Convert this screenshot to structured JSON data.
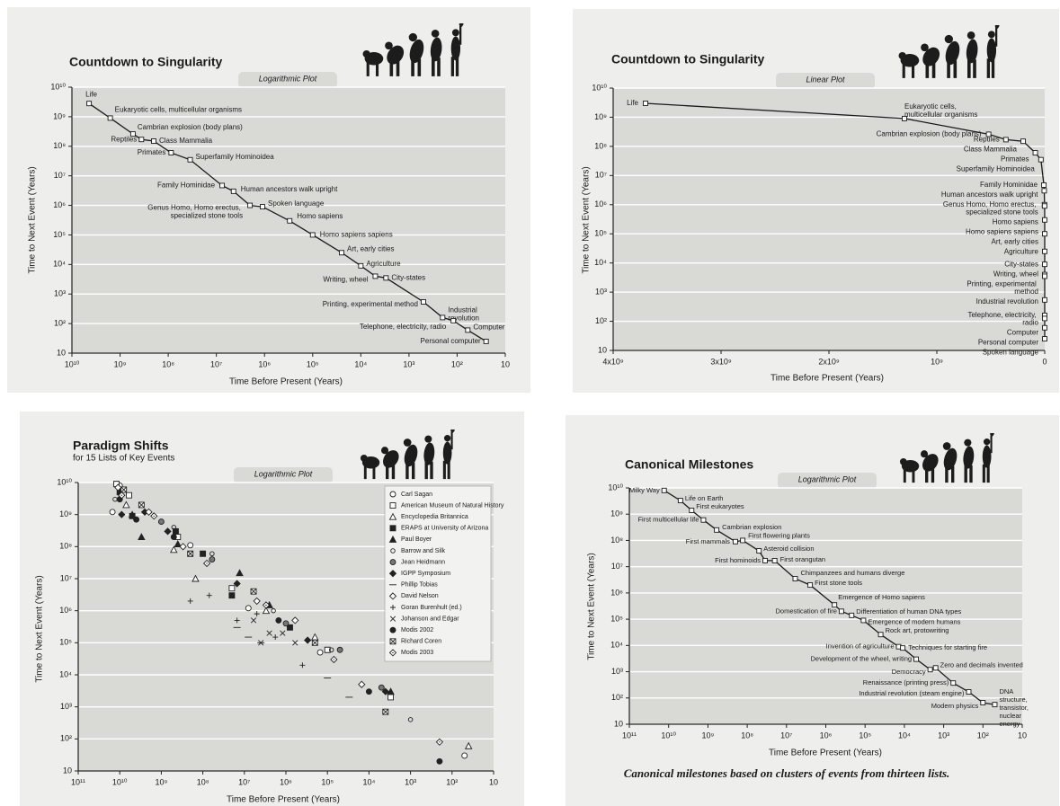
{
  "chart_data": [
    {
      "type": "line",
      "title": "Countdown to Singularity",
      "plot_label": "Logarithmic Plot",
      "x_label": "Time Before Present (Years)",
      "y_label": "Time to Next Event (Years)",
      "x_scale": "log",
      "y_scale": "log",
      "xlim": [
        10000000000.0,
        10
      ],
      "ylim": [
        10,
        10000000000.0
      ],
      "xticks": [
        {
          "value": 10000000000.0,
          "label": "10¹⁰"
        },
        {
          "value": 1000000000.0,
          "label": "10⁹"
        },
        {
          "value": 100000000.0,
          "label": "10⁸"
        },
        {
          "value": 10000000.0,
          "label": "10⁷"
        },
        {
          "value": 1000000.0,
          "label": "10⁶"
        },
        {
          "value": 100000.0,
          "label": "10⁵"
        },
        {
          "value": 10000.0,
          "label": "10⁴"
        },
        {
          "value": 1000.0,
          "label": "10³"
        },
        {
          "value": 100,
          "label": "10²"
        },
        10
      ],
      "yticks": [
        10,
        {
          "value": 100,
          "label": "10²"
        },
        {
          "value": 1000.0,
          "label": "10³"
        },
        {
          "value": 10000.0,
          "label": "10⁴"
        },
        {
          "value": 100000.0,
          "label": "10⁵"
        },
        {
          "value": 1000000.0,
          "label": "10⁶"
        },
        {
          "value": 10000000.0,
          "label": "10⁷"
        },
        {
          "value": 100000000.0,
          "label": "10⁸"
        },
        {
          "value": 1000000000.0,
          "label": "10⁹"
        },
        {
          "value": 10000000000.0,
          "label": "10¹⁰"
        }
      ],
      "grid": true,
      "color": "#1a1a1a",
      "x": [
        4400000000.0,
        1600000000.0,
        540000000.0,
        360000000.0,
        200000000.0,
        87000000.0,
        35000000.0,
        7600000.0,
        4400000.0,
        2000000.0,
        1100000.0,
        300000.0,
        100000.0,
        25000.0,
        10000.0,
        5000.0,
        3000.0,
        500,
        200,
        120,
        60,
        25
      ],
      "values": [
        2800000000.0,
        900000000.0,
        260000000.0,
        170000000.0,
        150000000.0,
        60000000.0,
        35000000.0,
        4700000.0,
        3000000.0,
        1000000.0,
        900000.0,
        300000.0,
        100000.0,
        25000.0,
        9000.0,
        4000.0,
        3500.0,
        540,
        160,
        125,
        60,
        25
      ],
      "labels": [
        "Life",
        "Eukaryotic cells, multicellular organisms",
        "Cambrian explosion (body plans)",
        "Reptiles",
        "Class Mammalia",
        "Primates",
        "Superfamily Hominoidea",
        "Family Hominidae",
        "Human ancestors walk upright",
        "Genus Homo, Homo erectus, specialized stone tools",
        "Spoken language",
        "Homo sapiens",
        "Homo sapiens sapiens",
        "Art, early cities",
        "Agriculture",
        "Writing, wheel",
        "City-states",
        "Printing, experimental method",
        "Industrial revolution",
        "Telephone, electricity, radio",
        "Computer",
        "Personal computer"
      ]
    },
    {
      "type": "line",
      "title": "Countdown to Singularity",
      "plot_label": "Linear Plot",
      "x_label": "Time Before Present (Years)",
      "y_label": "Time to Next Event (Years)",
      "x_scale": "linear",
      "y_scale": "log",
      "xlim": [
        4000000000.0,
        0
      ],
      "ylim": [
        10,
        10000000000.0
      ],
      "xticks": [
        {
          "value": 4000000000.0,
          "label": "4x10⁹"
        },
        {
          "value": 3000000000.0,
          "label": "3x10⁹"
        },
        {
          "value": 2000000000.0,
          "label": "2x10⁹"
        },
        {
          "value": 1000000000.0,
          "label": "10⁹"
        },
        0
      ],
      "yticks": [
        10,
        {
          "value": 100,
          "label": "10²"
        },
        {
          "value": 1000.0,
          "label": "10³"
        },
        {
          "value": 10000.0,
          "label": "10⁴"
        },
        {
          "value": 100000.0,
          "label": "10⁵"
        },
        {
          "value": 1000000.0,
          "label": "10⁶"
        },
        {
          "value": 10000000.0,
          "label": "10⁷"
        },
        {
          "value": 100000000.0,
          "label": "10⁸"
        },
        {
          "value": 1000000000.0,
          "label": "10⁹"
        },
        {
          "value": 10000000000.0,
          "label": "10¹⁰"
        }
      ],
      "grid": true,
      "color": "#1a1a1a",
      "x": [
        3700000000.0,
        1300000000.0,
        520000000.0,
        360000000.0,
        200000000.0,
        87000000.0,
        35000000.0,
        7600000.0,
        4400000.0,
        2000000.0,
        1100000.0,
        300000.0,
        100000.0,
        25000.0,
        10000.0,
        5000.0,
        3000.0,
        500,
        200,
        120,
        60,
        25
      ],
      "values": [
        3000000000.0,
        900000000.0,
        260000000.0,
        170000000.0,
        150000000.0,
        60000000.0,
        35000000.0,
        4700000.0,
        3000000.0,
        1000000.0,
        900000.0,
        300000.0,
        100000.0,
        25000.0,
        9000.0,
        4000.0,
        3500.0,
        540,
        160,
        125,
        60,
        25
      ],
      "labels": [
        "Life",
        "Eukaryotic cells, multicellular organisms",
        "Cambrian explosion (body plans)",
        "Reptiles",
        "Class Mammalia",
        "Primates",
        "Superfamily Hominoidea",
        "Family Hominidae",
        "Human ancestors walk upright",
        "Genus Homo, Homo erectus, specialized stone tools",
        "Homo sapiens",
        "Homo sapiens sapiens",
        "Art, early cities",
        "Agriculture",
        "City-states",
        "Writing, wheel",
        "Printing, experimental method",
        "Industrial revolution",
        "Telephone, electricity, radio",
        "Computer",
        "Personal computer",
        "Spoken language"
      ]
    },
    {
      "type": "scatter",
      "title": "Paradigm Shifts",
      "subtitle": "for 15 Lists of Key Events",
      "plot_label": "Logarithmic Plot",
      "x_label": "Time Before Present (Years)",
      "y_label": "Time to Next Event (Years)",
      "x_scale": "log",
      "y_scale": "log",
      "xlim": [
        100000000000.0,
        10
      ],
      "ylim": [
        10,
        10000000000.0
      ],
      "xticks": [
        {
          "value": 100000000000.0,
          "label": "10¹¹"
        },
        {
          "value": 10000000000.0,
          "label": "10¹⁰"
        },
        {
          "value": 1000000000.0,
          "label": "10⁹"
        },
        {
          "value": 100000000.0,
          "label": "10⁸"
        },
        {
          "value": 10000000.0,
          "label": "10⁷"
        },
        {
          "value": 1000000.0,
          "label": "10⁶"
        },
        {
          "value": 100000.0,
          "label": "10⁵"
        },
        {
          "value": 10000.0,
          "label": "10⁴"
        },
        {
          "value": 1000.0,
          "label": "10³"
        },
        {
          "value": 100,
          "label": "10²"
        },
        10
      ],
      "yticks": [
        10,
        {
          "value": 100,
          "label": "10²"
        },
        {
          "value": 1000.0,
          "label": "10³"
        },
        {
          "value": 10000.0,
          "label": "10⁴"
        },
        {
          "value": 100000.0,
          "label": "10⁵"
        },
        {
          "value": 1000000.0,
          "label": "10⁶"
        },
        {
          "value": 10000000.0,
          "label": "10⁷"
        },
        {
          "value": 100000000.0,
          "label": "10⁸"
        },
        {
          "value": 1000000000.0,
          "label": "10⁹"
        },
        {
          "value": 10000000000.0,
          "label": "10¹⁰"
        }
      ],
      "grid": true,
      "legend": "upper right",
      "series": [
        {
          "name": "Carl Sagan",
          "marker": "circle-open",
          "color": "#222222",
          "x": [
            15000000000.0,
            10000000000.0,
            200000000.0,
            8000000.0,
            150000.0,
            50
          ],
          "values": [
            1200000000.0,
            8000000000.0,
            110000000.0,
            1200000.0,
            50000.0,
            30
          ]
        },
        {
          "name": "American Museum of Natural History",
          "marker": "square-open",
          "color": "#222222",
          "x": [
            12000000000.0,
            6000000000.0,
            400000000.0,
            20000000.0,
            100000.0,
            3000
          ],
          "values": [
            9000000000.0,
            4000000000.0,
            200000000.0,
            5000000.0,
            60000.0,
            2000
          ]
        },
        {
          "name": "Encyclopedia Britannica",
          "marker": "triangle-open",
          "color": "#222222",
          "x": [
            7000000000.0,
            500000000.0,
            150000000.0,
            3000000.0,
            200000.0,
            40
          ],
          "values": [
            2000000000.0,
            80000000.0,
            10000000.0,
            1000000.0,
            150000.0,
            60
          ]
        },
        {
          "name": "ERAPS at University of Arizona",
          "marker": "square",
          "color": "#222222",
          "x": [
            10000000000.0,
            5000000000.0,
            450000000.0,
            100000000.0,
            20000000.0,
            800000.0
          ],
          "values": [
            5000000000.0,
            900000000.0,
            300000000.0,
            60000000.0,
            3000000.0,
            300000.0
          ]
        },
        {
          "name": "Paul Boyer",
          "marker": "triangle",
          "color": "#222222",
          "x": [
            5000000000.0,
            3000000000.0,
            400000000.0,
            13000000.0,
            2500000.0,
            3000
          ],
          "values": [
            1000000000.0,
            200000000.0,
            120000000.0,
            15000000.0,
            1500000.0,
            3000
          ]
        },
        {
          "name": "Barrow and Silk",
          "marker": "circle-small-open",
          "color": "#222222",
          "x": [
            13000000000.0,
            500000000.0,
            60000000.0,
            2000000.0,
            80000.0,
            1000
          ],
          "values": [
            3000000000.0,
            400000000.0,
            60000000.0,
            1000000.0,
            60000.0,
            400
          ]
        },
        {
          "name": "Jean Heidmann",
          "marker": "circle-half",
          "color": "#222222",
          "x": [
            8000000000.0,
            1000000000.0,
            60000000.0,
            1000000.0,
            50000.0,
            5000
          ],
          "values": [
            6000000000.0,
            600000000.0,
            40000000.0,
            400000.0,
            60000.0,
            4000
          ]
        },
        {
          "name": "IGPP Symposium",
          "marker": "diamond",
          "color": "#222222",
          "x": [
            9000000000.0,
            2500000000.0,
            700000000.0,
            15000000.0,
            300000.0,
            4000
          ],
          "values": [
            1000000000.0,
            1200000000.0,
            300000000.0,
            7000000.0,
            120000.0,
            3000
          ]
        },
        {
          "name": "Phillip Tobias",
          "marker": "dash",
          "color": "#222222",
          "x": [
            15000000.0,
            8000000.0,
            4000000.0,
            100000.0,
            30000.0
          ],
          "values": [
            300000.0,
            150000.0,
            100000.0,
            8000.0,
            2000
          ]
        },
        {
          "name": "David Nelson",
          "marker": "diamond-open",
          "color": "#222222",
          "x": [
            11000000000.0,
            2000000000.0,
            300000000.0,
            5000000.0,
            600000.0,
            15000.0
          ],
          "values": [
            7000000000.0,
            1200000000.0,
            100000000.0,
            2000000.0,
            500000.0,
            5000
          ]
        },
        {
          "name": "Goran Burenhult (ed.)",
          "marker": "plus",
          "color": "#222222",
          "x": [
            200000000.0,
            70000000.0,
            15000000.0,
            5000000.0,
            1800000.0,
            400000.0
          ],
          "values": [
            2000000.0,
            3000000.0,
            500000.0,
            800000.0,
            150000.0,
            20000.0
          ]
        },
        {
          "name": "Johanson and Edgar",
          "marker": "x",
          "color": "#222222",
          "x": [
            6000000.0,
            4000000.0,
            2500000.0,
            1200000.0,
            600000.0
          ],
          "values": [
            500000.0,
            100000.0,
            200000.0,
            200000.0,
            100000.0
          ]
        },
        {
          "name": "Modis 2002",
          "marker": "circle",
          "color": "#222222",
          "x": [
            10000000000.0,
            4000000000.0,
            500000000.0,
            1500000.0,
            10000.0,
            200
          ],
          "values": [
            3000000000.0,
            700000000.0,
            200000000.0,
            500000.0,
            3000,
            20
          ]
        },
        {
          "name": "Richard Coren",
          "marker": "square-x",
          "color": "#222222",
          "x": [
            8000000000.0,
            3000000000.0,
            200000000.0,
            6000000.0,
            200000.0,
            4000
          ],
          "values": [
            6000000000.0,
            2000000000.0,
            60000000.0,
            4000000.0,
            100000.0,
            700
          ]
        },
        {
          "name": "Modis 2003",
          "marker": "diamond-dot",
          "color": "#222222",
          "x": [
            9000000000.0,
            1500000000.0,
            80000000.0,
            3000000.0,
            70000.0,
            200
          ],
          "values": [
            4000000000.0,
            900000000.0,
            30000000.0,
            1500000.0,
            30000.0,
            80
          ]
        }
      ]
    },
    {
      "type": "line",
      "title": "Canonical Milestones",
      "plot_label": "Logarithmic Plot",
      "x_label": "Time Before Present (Years)",
      "y_label": "Time to Next Event (Years)",
      "caption": "Canonical milestones based on clusters of events from thirteen lists.",
      "x_scale": "log",
      "y_scale": "log",
      "xlim": [
        100000000000.0,
        10
      ],
      "ylim": [
        10,
        10000000000.0
      ],
      "xticks": [
        {
          "value": 100000000000.0,
          "label": "10¹¹"
        },
        {
          "value": 10000000000.0,
          "label": "10¹⁰"
        },
        {
          "value": 1000000000.0,
          "label": "10⁹"
        },
        {
          "value": 100000000.0,
          "label": "10⁸"
        },
        {
          "value": 10000000.0,
          "label": "10⁷"
        },
        {
          "value": 1000000.0,
          "label": "10⁶"
        },
        {
          "value": 100000.0,
          "label": "10⁵"
        },
        {
          "value": 10000.0,
          "label": "10⁴"
        },
        {
          "value": 1000.0,
          "label": "10³"
        },
        {
          "value": 100,
          "label": "10²"
        },
        10
      ],
      "yticks": [
        10,
        {
          "value": 100,
          "label": "10²"
        },
        {
          "value": 1000.0,
          "label": "10³"
        },
        {
          "value": 10000.0,
          "label": "10⁴"
        },
        {
          "value": 100000.0,
          "label": "10⁵"
        },
        {
          "value": 1000000.0,
          "label": "10⁶"
        },
        {
          "value": 10000000.0,
          "label": "10⁷"
        },
        {
          "value": 100000000.0,
          "label": "10⁸"
        },
        {
          "value": 1000000000.0,
          "label": "10⁹"
        },
        {
          "value": 10000000000.0,
          "label": "10¹⁰"
        }
      ],
      "grid": true,
      "color": "#1a1a1a",
      "x": [
        13000000000.0,
        5000000000.0,
        2600000000.0,
        1300000000.0,
        600000000.0,
        200000000.0,
        130000000.0,
        50000000.0,
        35000000.0,
        20000000.0,
        6000000.0,
        2500000.0,
        600000.0,
        400000.0,
        220000.0,
        110000.0,
        40000.0,
        14000.0,
        11000.0,
        5000.0,
        2200.0,
        1600.0,
        570,
        230,
        100,
        50
      ],
      "values": [
        8000000000.0,
        3300000000.0,
        1400000000.0,
        600000000.0,
        250000000.0,
        90000000.0,
        100000000.0,
        40000000.0,
        17000000.0,
        17000000.0,
        3500000.0,
        2000000.0,
        350000.0,
        200000.0,
        140000.0,
        90000.0,
        26000.0,
        9000.0,
        8000.0,
        3000.0,
        1200.0,
        1400.0,
        370,
        170,
        66,
        56
      ],
      "labels": [
        "Milky Way",
        "Life on Earth",
        "First eukaryotes",
        "First multicellular life",
        "Cambrian explosion",
        "First mammals",
        "First flowering plants",
        "Asteroid collision",
        "First hominoids",
        "First orangutan",
        "Chimpanzees and humans diverge",
        "First stone tools",
        "Emergence of Homo sapiens",
        "Domestication of fire",
        "Differentiation of human DNA types",
        "Emergence of modern humans",
        "Rock art, protowriting",
        "Invention of agriculture",
        "Techniques for starting fire",
        "Development of the wheel, writing",
        "Democracy",
        "Zero and decimals invented",
        "Renaissance (printing press)",
        "Industrial revolution (steam engine)",
        "Modern physics",
        "DNA structure, transistor, nuclear energy"
      ]
    }
  ]
}
